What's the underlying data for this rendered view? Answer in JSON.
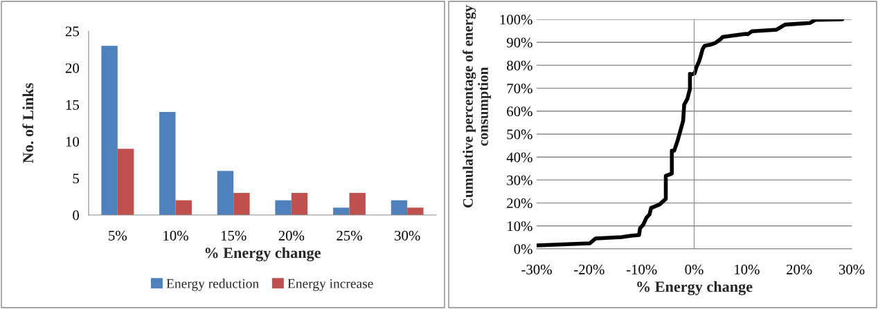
{
  "chart_data": [
    {
      "type": "bar",
      "xlabel": "% Energy change",
      "ylabel": "No. of Links",
      "categories": [
        "5%",
        "10%",
        "15%",
        "20%",
        "25%",
        "30%"
      ],
      "series": [
        {
          "name": "Energy reduction",
          "color": "#4f81bd",
          "values": [
            23,
            14,
            6,
            2,
            1,
            2
          ]
        },
        {
          "name": "Energy increase",
          "color": "#c0504d",
          "values": [
            9,
            2,
            3,
            3,
            3,
            1
          ]
        }
      ],
      "ylim": [
        0,
        25
      ],
      "yticks": [
        0,
        5,
        10,
        15,
        20,
        25
      ],
      "grid": false,
      "legend": "bottom"
    },
    {
      "type": "line",
      "xlabel": "% Energy change",
      "ylabel": "Cumulative percentage of energy consumption",
      "grid": "y",
      "xlim": [
        -30,
        30
      ],
      "xticks": [
        {
          "value": -30,
          "label": "-30%"
        },
        {
          "value": -20,
          "label": "-20%"
        },
        {
          "value": -10,
          "label": "-10%"
        },
        {
          "value": 0,
          "label": "0%"
        },
        {
          "value": 10,
          "label": "10%"
        },
        {
          "value": 20,
          "label": "20%"
        },
        {
          "value": 30,
          "label": "30%"
        }
      ],
      "ylim": [
        0,
        100
      ],
      "yticks": [
        {
          "value": 0,
          "label": "0%"
        },
        {
          "value": 10,
          "label": "10%"
        },
        {
          "value": 20,
          "label": "20%"
        },
        {
          "value": 30,
          "label": "30%"
        },
        {
          "value": 40,
          "label": "40%"
        },
        {
          "value": 50,
          "label": "50%"
        },
        {
          "value": 60,
          "label": "60%"
        },
        {
          "value": 70,
          "label": "70%"
        },
        {
          "value": 80,
          "label": "80%"
        },
        {
          "value": 90,
          "label": "90%"
        },
        {
          "value": 100,
          "label": "100%"
        }
      ],
      "series": [
        {
          "color": "#000000",
          "x": [
            -30,
            -19.9,
            -18.8,
            -13.8,
            -12,
            -10.5,
            -10.3,
            -9.7,
            -9.1,
            -8.5,
            -8.2,
            -6.6,
            -5.4,
            -5.4,
            -4.25,
            -4.25,
            -3.8,
            -3.2,
            -2.7,
            -2.1,
            -1.9,
            -1.3,
            -0.8,
            -0.8,
            -0.5,
            0.1,
            0.4,
            0.9,
            1.25,
            1.6,
            2,
            3.2,
            4,
            5,
            5.4,
            9.8,
            10.2,
            11,
            15.7,
            17.3,
            22,
            23.1,
            28.2
          ],
          "values": [
            1.5,
            2.4,
            4.5,
            5.1,
            5.7,
            6,
            9,
            10.5,
            13.5,
            15,
            17.8,
            19.3,
            21.8,
            31.8,
            32.8,
            42.8,
            42.8,
            46.8,
            50.8,
            55.8,
            62.8,
            65.3,
            69.8,
            76.3,
            76,
            76.5,
            79,
            81.5,
            84,
            87,
            88.5,
            89,
            89.7,
            91.3,
            92.3,
            93.7,
            93.5,
            94.8,
            95.5,
            97.7,
            98.4,
            99.8,
            100
          ]
        }
      ]
    }
  ]
}
